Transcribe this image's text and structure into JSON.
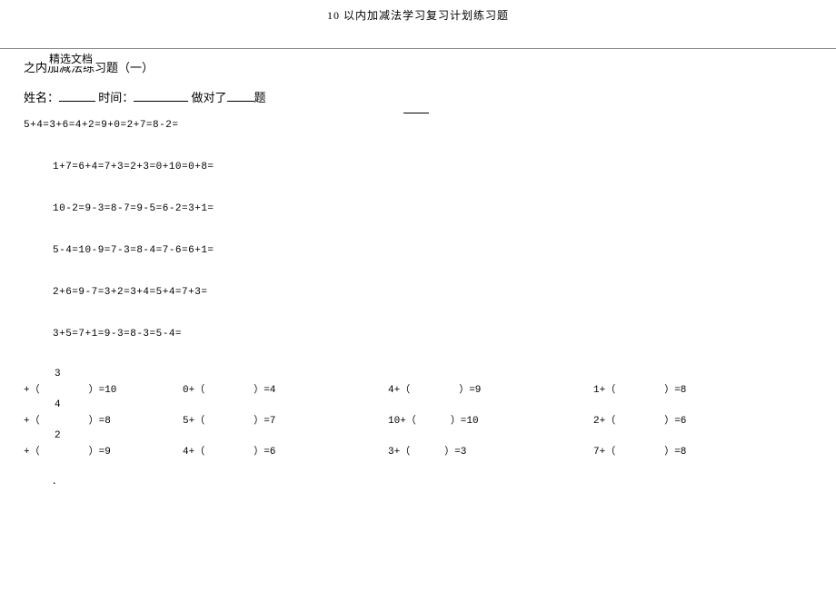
{
  "title": "10 以内加减法学习复习计划练习题",
  "section_label": "精选文档",
  "subtitle": "之内加减法练习题（一）",
  "name_row": {
    "name_label": "姓名：",
    "time_label": "时间：",
    "correct_label_prefix": "做对了",
    "correct_label_suffix": "题"
  },
  "equations": {
    "first": "5+4=3+6=4+2=9+0=2+7=8-2=",
    "lines": [
      "1+7=6+4=7+3=2+3=0+10=0+8=",
      "10-2=9-3=8-7=9-5=6-2=3+1=",
      "5-4=10-9=7-3=8-4=7-6=6+1=",
      "2+6=9-7=3+2=3+4=5+4=7+3=",
      "3+5=7+1=9-3=8-3=5-4="
    ]
  },
  "fill_rows": [
    {
      "lead_top": "3",
      "lead": "+（",
      "lead_rhs": "）=10",
      "cells": [
        {
          "lhs": "0+（",
          "rhs": "）=4"
        },
        {
          "lhs": "4+（",
          "rhs": "）=9"
        },
        {
          "lhs": "1+（",
          "rhs": "）=8"
        }
      ]
    },
    {
      "lead_top": "4",
      "lead": "+（",
      "lead_rhs": "）=8",
      "cells": [
        {
          "lhs": "5+（",
          "rhs": "）=7"
        },
        {
          "lhs": "10+（",
          "rhs": "）=10"
        },
        {
          "lhs": "2+（",
          "rhs": "）=6"
        }
      ]
    },
    {
      "lead_top": "2",
      "lead": "+（",
      "lead_rhs": "）=9",
      "cells": [
        {
          "lhs": "4+（",
          "rhs": "）=6"
        },
        {
          "lhs": "3+（",
          "rhs": "）=3"
        },
        {
          "lhs": "7+（",
          "rhs": "）=8"
        }
      ]
    }
  ],
  "end_dot": "."
}
